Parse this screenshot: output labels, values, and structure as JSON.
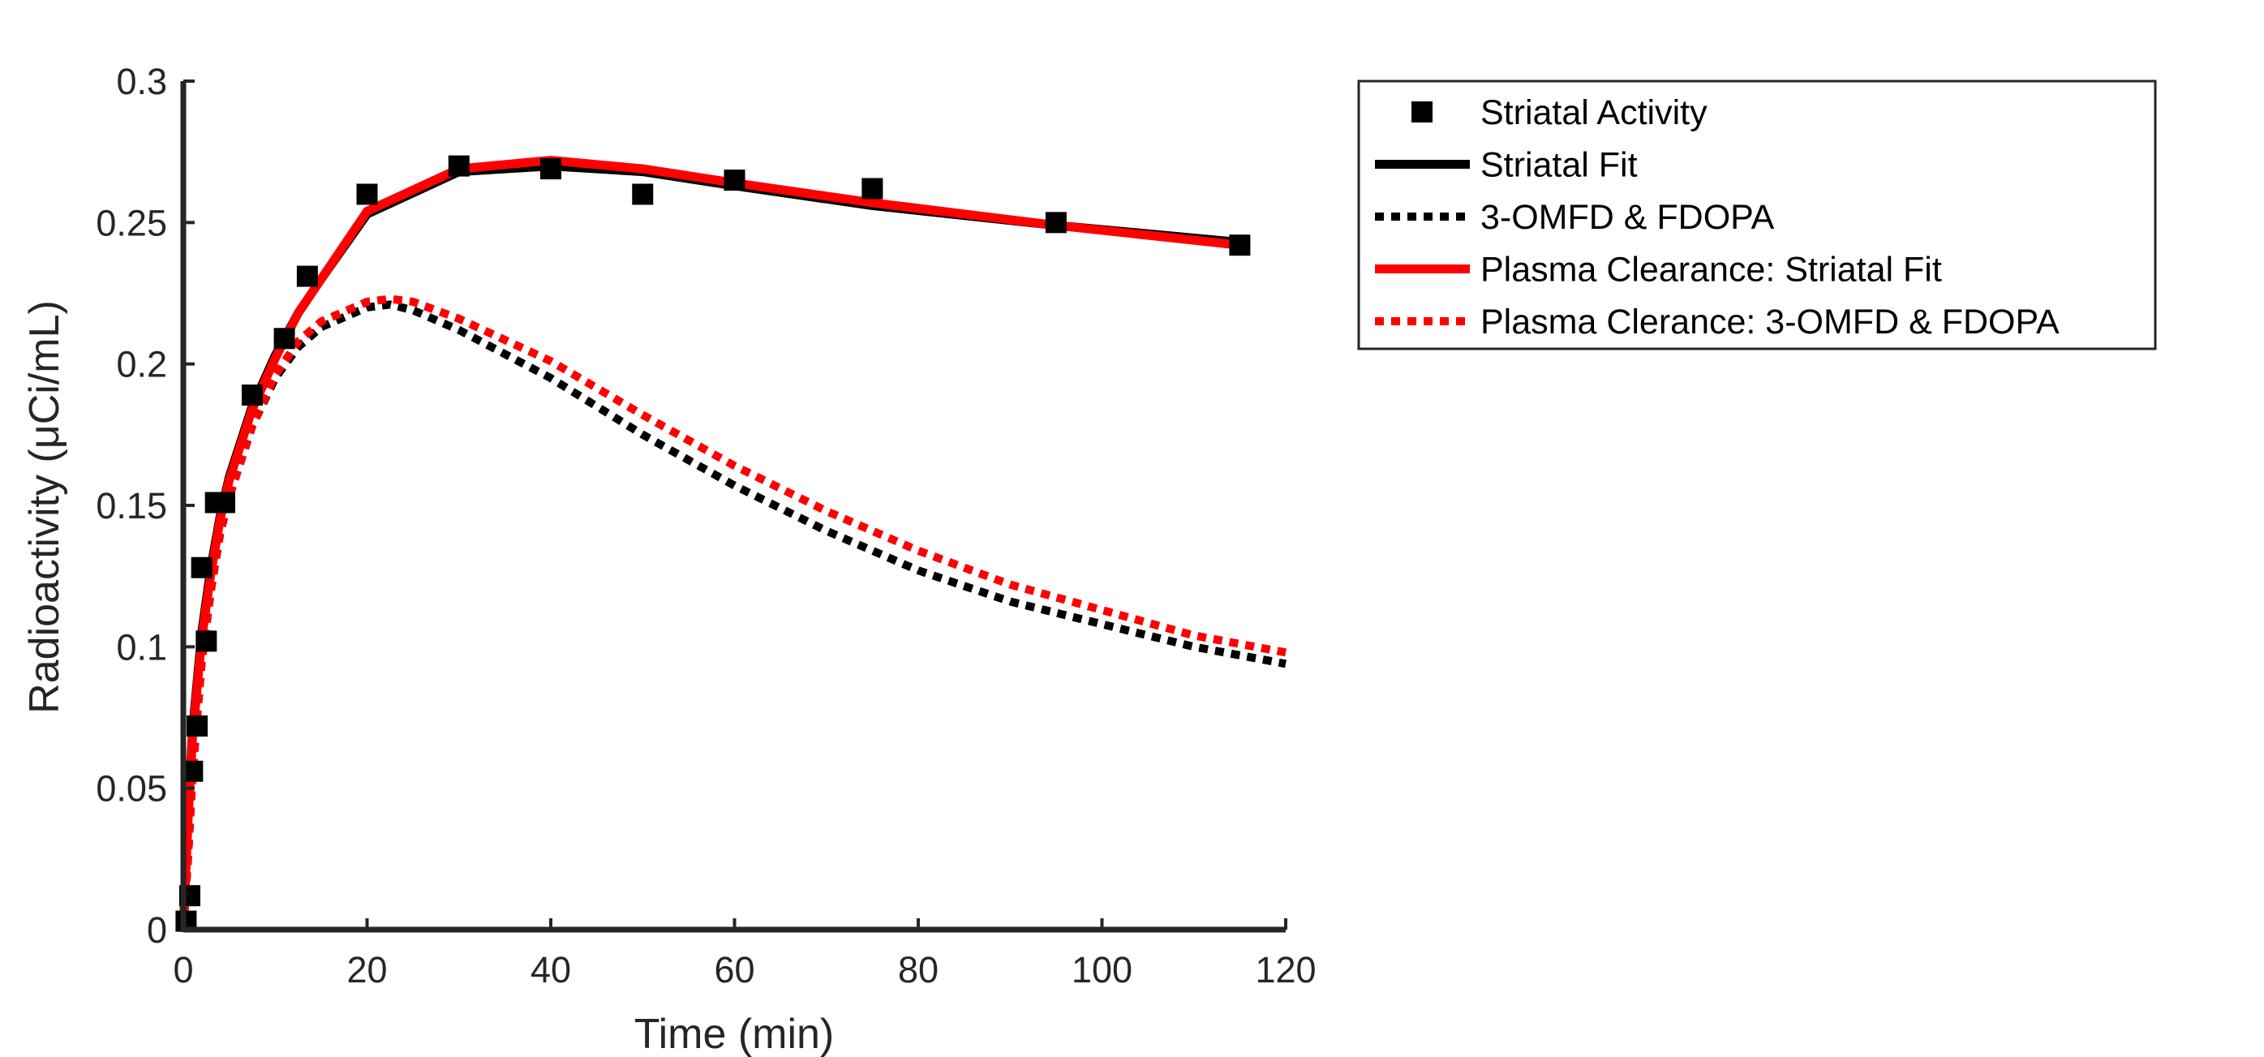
{
  "chart_data": {
    "type": "line",
    "xlabel": "Time (min)",
    "ylabel": "Radioactivity (μCi/mL)",
    "xlim": [
      0,
      120
    ],
    "ylim": [
      0,
      0.3
    ],
    "xticks": [
      0,
      20,
      40,
      60,
      80,
      100,
      120
    ],
    "yticks": [
      0,
      0.05,
      0.1,
      0.15,
      0.2,
      0.25,
      0.3
    ],
    "xtick_labels": [
      "0",
      "20",
      "40",
      "60",
      "80",
      "100",
      "120"
    ],
    "ytick_labels": [
      "0",
      "0.05",
      "0.1",
      "0.15",
      "0.2",
      "0.25",
      "0.3"
    ],
    "grid": false,
    "legend_position": "outside-top-right",
    "series": [
      {
        "name": "Striatal Activity",
        "style": "markers-square",
        "color": "#000000",
        "x": [
          0.3,
          0.7,
          1.0,
          1.5,
          2.0,
          2.5,
          3.5,
          4.5,
          7.5,
          11,
          13.5,
          20,
          30,
          40,
          50,
          60,
          75,
          95,
          115
        ],
        "y": [
          0.003,
          0.012,
          0.056,
          0.072,
          0.128,
          0.102,
          0.151,
          0.151,
          0.189,
          0.209,
          0.231,
          0.26,
          0.27,
          0.269,
          0.26,
          0.265,
          0.262,
          0.25,
          0.242
        ]
      },
      {
        "name": "Striatal Fit",
        "style": "solid",
        "color": "#000000",
        "x": [
          0,
          0.5,
          1,
          2,
          3,
          4,
          5,
          7.5,
          10,
          12.5,
          15,
          20,
          30,
          40,
          50,
          60,
          75,
          95,
          115
        ],
        "y": [
          0.0,
          0.04,
          0.07,
          0.105,
          0.128,
          0.146,
          0.16,
          0.185,
          0.203,
          0.218,
          0.23,
          0.253,
          0.268,
          0.27,
          0.268,
          0.263,
          0.256,
          0.249,
          0.243
        ]
      },
      {
        "name": "3-OMFD & FDOPA",
        "style": "dotted",
        "color": "#000000",
        "x": [
          0,
          0.5,
          1,
          2,
          3,
          4,
          5,
          7.5,
          10,
          12.5,
          15,
          20,
          22.5,
          25,
          30,
          40,
          50,
          60,
          70,
          80,
          90,
          100,
          110,
          120
        ],
        "y": [
          0.0,
          0.025,
          0.055,
          0.095,
          0.12,
          0.14,
          0.153,
          0.178,
          0.195,
          0.206,
          0.213,
          0.22,
          0.221,
          0.219,
          0.212,
          0.195,
          0.175,
          0.157,
          0.141,
          0.127,
          0.116,
          0.108,
          0.1,
          0.094
        ]
      },
      {
        "name": "Plasma Clearance: Striatal Fit",
        "style": "solid",
        "color": "#ff0000",
        "x": [
          0,
          0.5,
          1,
          2,
          3,
          4,
          5,
          7.5,
          10,
          12.5,
          15,
          20,
          30,
          40,
          50,
          60,
          75,
          95,
          115
        ],
        "y": [
          0.0,
          0.038,
          0.068,
          0.103,
          0.126,
          0.145,
          0.159,
          0.184,
          0.202,
          0.218,
          0.23,
          0.254,
          0.269,
          0.272,
          0.269,
          0.264,
          0.257,
          0.249,
          0.242
        ]
      },
      {
        "name": "Plasma Clerance: 3-OMFD & FDOPA",
        "style": "dotted",
        "color": "#ff0000",
        "x": [
          0,
          0.5,
          1,
          2,
          3,
          4,
          5,
          7.5,
          10,
          12.5,
          15,
          20,
          22.5,
          25,
          30,
          40,
          50,
          60,
          70,
          80,
          90,
          100,
          110,
          120
        ],
        "y": [
          0.0,
          0.025,
          0.055,
          0.095,
          0.12,
          0.14,
          0.153,
          0.178,
          0.196,
          0.208,
          0.215,
          0.222,
          0.223,
          0.222,
          0.216,
          0.201,
          0.182,
          0.164,
          0.148,
          0.134,
          0.122,
          0.113,
          0.104,
          0.098
        ]
      }
    ]
  }
}
